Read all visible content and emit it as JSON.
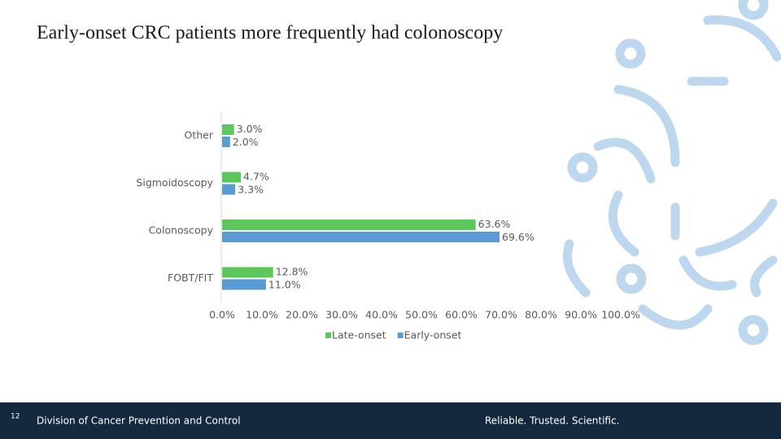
{
  "chart_data": {
    "type": "hbar",
    "title": "Early-onset CRC patients more frequently had colonoscopy",
    "categories": [
      "Other",
      "Sigmoidoscopy",
      "Colonoscopy",
      "FOBT/FIT"
    ],
    "series": [
      {
        "name": "Late-onset",
        "color": "#5cc85c",
        "values": [
          3.0,
          4.7,
          63.6,
          12.8
        ],
        "value_labels": [
          "3.0%",
          "4.7%",
          "63.6%",
          "12.8%"
        ]
      },
      {
        "name": "Early-onset",
        "color": "#5b9bd5",
        "values": [
          2.0,
          3.3,
          69.6,
          11.0
        ],
        "value_labels": [
          "2.0%",
          "3.3%",
          "69.6%",
          "11.0%"
        ]
      }
    ],
    "xlim": [
      0,
      100
    ],
    "xticks": [
      {
        "value": 0,
        "label": "0.0%"
      },
      {
        "value": 10,
        "label": "10.0%"
      },
      {
        "value": 20,
        "label": "20.0%"
      },
      {
        "value": 30,
        "label": "30.0%"
      },
      {
        "value": 40,
        "label": "40.0%"
      },
      {
        "value": 50,
        "label": "50.0%"
      },
      {
        "value": 60,
        "label": "60.0%"
      },
      {
        "value": 70,
        "label": "70.0%"
      },
      {
        "value": 80,
        "label": "80.0%"
      },
      {
        "value": 90,
        "label": "90.0%"
      },
      {
        "value": 100,
        "label": "100.0%"
      }
    ],
    "grid": false,
    "legend": "bottom"
  },
  "footer": {
    "page": "12",
    "left": "Division of Cancer Prevention and Control",
    "right": "Reliable. Trusted. Scientific."
  }
}
